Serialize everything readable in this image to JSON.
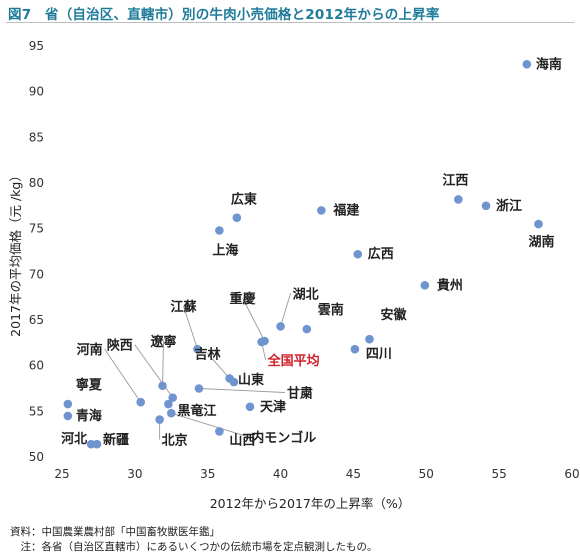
{
  "title": "図7　省（自治区、直轄市）別の牛肉小売価格と2012年からの上昇率",
  "source_note": "資料：中国農業農村部「中国畜牧獣医年鑑」",
  "footnote": "　注：各省（自治区直轄市）にあるいくつかの伝統市場を定点観測したもの。",
  "chart_data": {
    "type": "scatter",
    "title": "図7　省（自治区、直轄市）別の牛肉小売価格と2012年からの上昇率",
    "xlabel": "2012年から2017年の上昇率（%）",
    "ylabel": "2017年の平均価格（元 /kg）",
    "xlim": [
      25,
      60
    ],
    "ylim": [
      50,
      95
    ],
    "xticks": [
      25,
      30,
      35,
      40,
      45,
      50,
      55,
      60
    ],
    "yticks": [
      50,
      55,
      60,
      65,
      70,
      75,
      80,
      85,
      90,
      95
    ],
    "grid": false,
    "marker_color": "#6f94cf",
    "highlight_color": "#d0202a",
    "points": [
      {
        "label": "海南",
        "x": 56.9,
        "y": 93.0
      },
      {
        "label": "江西",
        "x": 52.2,
        "y": 78.2
      },
      {
        "label": "浙江",
        "x": 54.1,
        "y": 77.5
      },
      {
        "label": "湖南",
        "x": 57.7,
        "y": 75.5
      },
      {
        "label": "福建",
        "x": 42.8,
        "y": 77.0
      },
      {
        "label": "広東",
        "x": 37.0,
        "y": 76.2
      },
      {
        "label": "上海",
        "x": 35.8,
        "y": 74.8
      },
      {
        "label": "広西",
        "x": 45.3,
        "y": 72.2
      },
      {
        "label": "貴州",
        "x": 49.9,
        "y": 68.8
      },
      {
        "label": "湖北",
        "x": 40.0,
        "y": 64.3
      },
      {
        "label": "雲南",
        "x": 41.8,
        "y": 64.0
      },
      {
        "label": "安徽",
        "x": 46.1,
        "y": 62.9
      },
      {
        "label": "四川",
        "x": 45.1,
        "y": 61.8
      },
      {
        "label": "重慶",
        "x": 38.9,
        "y": 62.7
      },
      {
        "label": "全国平均",
        "x": 38.7,
        "y": 62.6,
        "highlight": true
      },
      {
        "label": "江蘇",
        "x": 34.3,
        "y": 61.8
      },
      {
        "label": "吉林",
        "x": 36.5,
        "y": 58.6
      },
      {
        "label": "山東",
        "x": 36.8,
        "y": 58.2
      },
      {
        "label": "遼寧",
        "x": 31.9,
        "y": 57.8
      },
      {
        "label": "甘粛",
        "x": 34.4,
        "y": 57.5
      },
      {
        "label": "陝西",
        "x": 32.6,
        "y": 56.5
      },
      {
        "label": "河南",
        "x": 30.4,
        "y": 56.0
      },
      {
        "label": "黒竜江",
        "x": 32.3,
        "y": 55.8
      },
      {
        "label": "天津",
        "x": 37.9,
        "y": 55.5
      },
      {
        "label": "寧夏",
        "x": 25.4,
        "y": 55.8
      },
      {
        "label": "青海",
        "x": 25.4,
        "y": 54.5
      },
      {
        "label": "内モンゴル",
        "x": 32.5,
        "y": 54.8
      },
      {
        "label": "北京",
        "x": 31.7,
        "y": 54.1
      },
      {
        "label": "山西",
        "x": 35.8,
        "y": 52.8
      },
      {
        "label": "河北",
        "x": 27.0,
        "y": 51.4
      },
      {
        "label": "新疆",
        "x": 27.4,
        "y": 51.4
      }
    ]
  }
}
